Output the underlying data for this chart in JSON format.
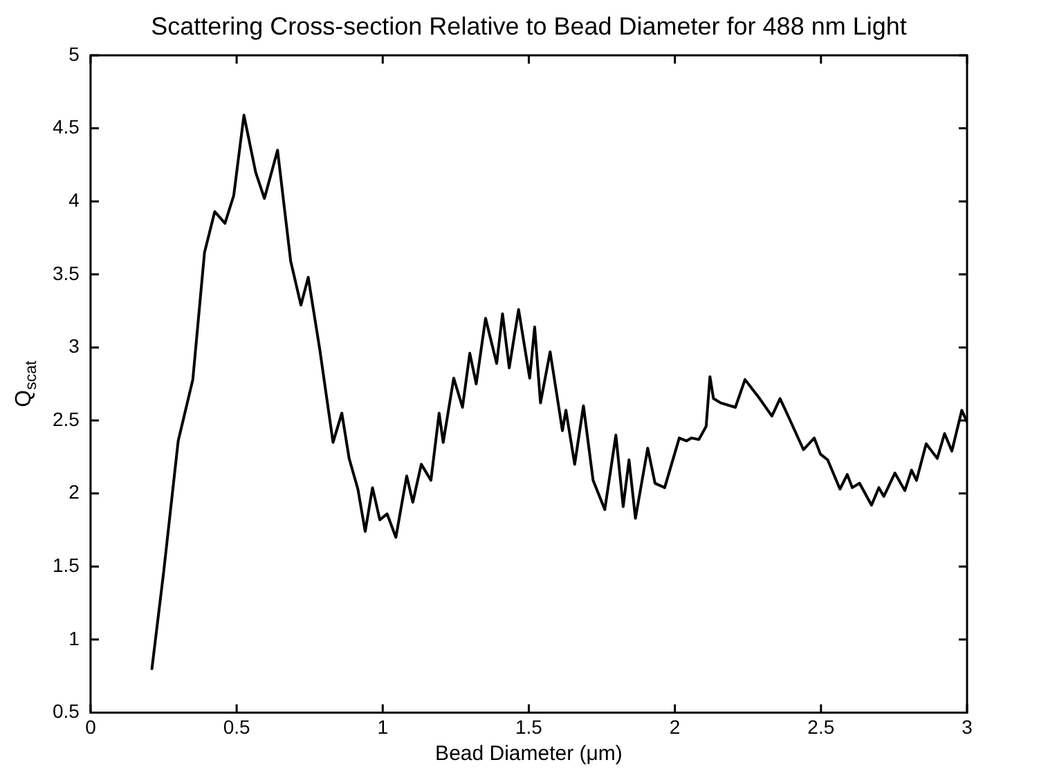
{
  "chart_data": {
    "type": "line",
    "title": "Scattering Cross-section Relative to Bead Diameter for 488 nm Light",
    "xlabel": "Bead Diameter (μm)",
    "ylabel": "Q$_{scat}$",
    "xlim": [
      0,
      3
    ],
    "xticks": [
      0,
      0.5,
      1,
      1.5,
      2,
      2.5,
      3
    ],
    "ylim": [
      0.5,
      5
    ],
    "yticks": [
      0.5,
      1,
      1.5,
      2,
      2.5,
      3,
      3.5,
      4,
      4.5,
      5
    ],
    "grid": false,
    "legend": false,
    "marker": "none",
    "line_style": "solid",
    "series": [
      {
        "color": "#000000",
        "x": [
          0.21,
          0.25,
          0.3,
          0.35,
          0.39,
          0.425,
          0.46,
          0.49,
          0.525,
          0.565,
          0.595,
          0.64,
          0.685,
          0.72,
          0.745,
          0.785,
          0.83,
          0.86,
          0.885,
          0.915,
          0.94,
          0.965,
          0.99,
          1.015,
          1.045,
          1.082,
          1.103,
          1.132,
          1.165,
          1.193,
          1.207,
          1.243,
          1.273,
          1.298,
          1.32,
          1.352,
          1.39,
          1.41,
          1.433,
          1.465,
          1.503,
          1.52,
          1.54,
          1.573,
          1.615,
          1.627,
          1.657,
          1.687,
          1.72,
          1.76,
          1.798,
          1.823,
          1.843,
          1.865,
          1.907,
          1.932,
          1.965,
          2.015,
          2.04,
          2.057,
          2.082,
          2.107,
          2.12,
          2.132,
          2.157,
          2.207,
          2.24,
          2.29,
          2.332,
          2.36,
          2.39,
          2.44,
          2.477,
          2.498,
          2.523,
          2.565,
          2.59,
          2.607,
          2.632,
          2.673,
          2.698,
          2.715,
          2.753,
          2.787,
          2.81,
          2.827,
          2.86,
          2.898,
          2.923,
          2.948,
          2.982,
          3.0
        ],
        "values": [
          0.8,
          1.46,
          2.36,
          2.78,
          3.65,
          3.93,
          3.85,
          4.04,
          4.59,
          4.2,
          4.02,
          4.35,
          3.59,
          3.29,
          3.48,
          2.98,
          2.35,
          2.55,
          2.24,
          2.03,
          1.74,
          2.04,
          1.82,
          1.86,
          1.7,
          2.12,
          1.94,
          2.2,
          2.09,
          2.55,
          2.35,
          2.79,
          2.59,
          2.96,
          2.75,
          3.2,
          2.89,
          3.23,
          2.86,
          3.26,
          2.79,
          3.14,
          2.62,
          2.97,
          2.43,
          2.57,
          2.2,
          2.6,
          2.09,
          1.89,
          2.4,
          1.91,
          2.23,
          1.83,
          2.31,
          2.07,
          2.04,
          2.38,
          2.36,
          2.38,
          2.37,
          2.46,
          2.8,
          2.65,
          2.62,
          2.59,
          2.78,
          2.65,
          2.53,
          2.65,
          2.52,
          2.3,
          2.38,
          2.27,
          2.23,
          2.03,
          2.13,
          2.04,
          2.07,
          1.92,
          2.04,
          1.98,
          2.14,
          2.02,
          2.16,
          2.09,
          2.34,
          2.24,
          2.41,
          2.29,
          2.57,
          2.49
        ]
      }
    ]
  }
}
